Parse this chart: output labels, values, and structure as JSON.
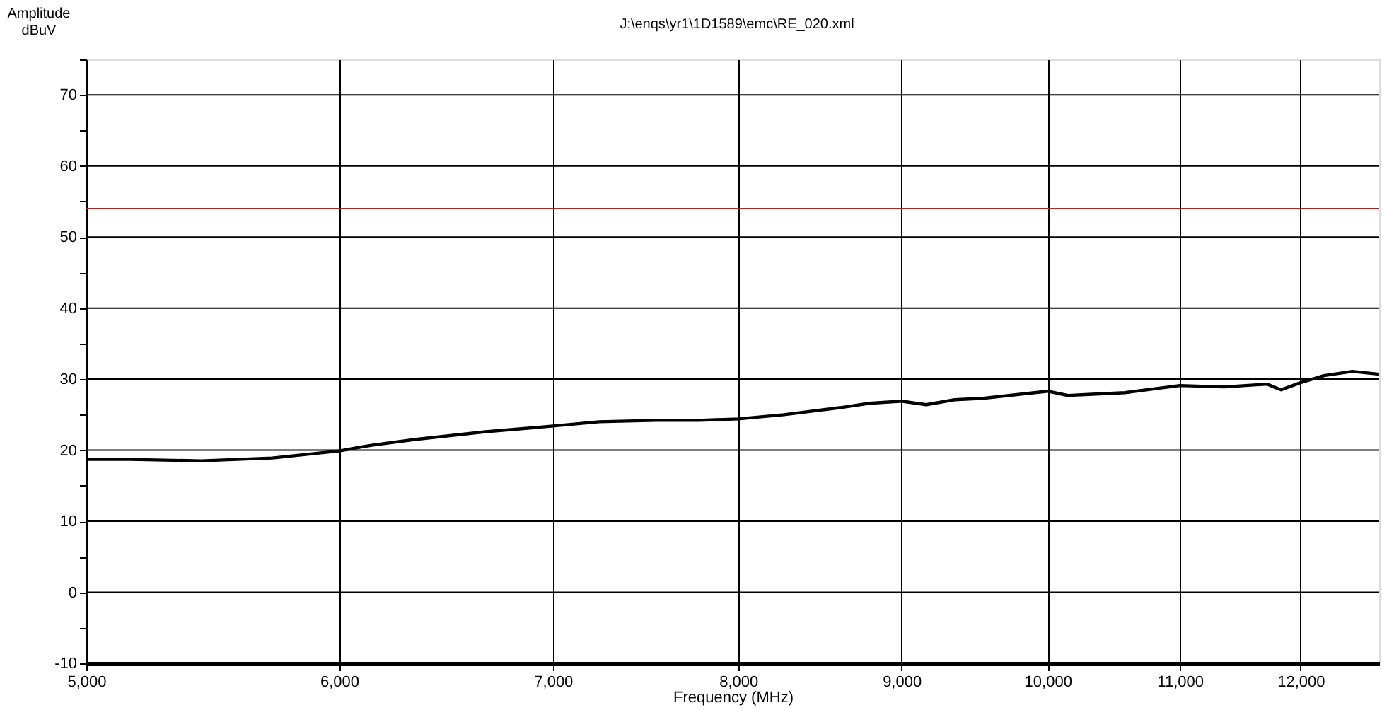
{
  "chart_data": {
    "type": "line",
    "title": "J:\\enqs\\yr1\\1D1589\\emc\\RE_020.xml",
    "xlabel": "Frequency (MHz)",
    "ylabel": "Amplitude\ndBuV",
    "log": "x",
    "grid": true,
    "legend": false,
    "marker": "none",
    "line_style": "solid",
    "xlim": [
      5000,
      12700
    ],
    "ylim": [
      -10,
      75
    ],
    "xticks": [
      {
        "value": 5000,
        "label": "5,000"
      },
      {
        "value": 6000,
        "label": "6,000"
      },
      {
        "value": 7000,
        "label": "7,000"
      },
      {
        "value": 8000,
        "label": "8,000"
      },
      {
        "value": 9000,
        "label": "9,000"
      },
      {
        "value": 10000,
        "label": "10,000"
      },
      {
        "value": 11000,
        "label": "11,000"
      },
      {
        "value": 12000,
        "label": "12,000"
      }
    ],
    "yticks": [
      -10,
      {
        "value": -5,
        "label": null
      },
      0,
      {
        "value": 5,
        "label": null
      },
      10,
      {
        "value": 15,
        "label": null
      },
      20,
      {
        "value": 25,
        "label": null
      },
      30,
      {
        "value": 35,
        "label": null
      },
      40,
      {
        "value": 45,
        "label": null
      },
      50,
      {
        "value": 55,
        "label": null
      },
      60,
      {
        "value": 65,
        "label": null
      },
      70,
      {
        "value": 75,
        "label": null
      }
    ],
    "ref_lines": [
      {
        "axis": "y",
        "value": 54,
        "color": "#ff0000"
      }
    ],
    "series": [
      {
        "color": "#000000",
        "x": [
          5000,
          5162,
          5432,
          5718,
          6000,
          6142,
          6335,
          6668,
          7000,
          7237,
          7539,
          7774,
          8000,
          8269,
          8615,
          8793,
          9000,
          9161,
          9351,
          9544,
          10000,
          10147,
          10571,
          11000,
          11357,
          11714,
          11833,
          12000,
          12204,
          12457,
          12700
        ],
        "values": [
          18.7,
          18.7,
          18.5,
          18.9,
          19.9,
          20.7,
          21.5,
          22.6,
          23.4,
          24.0,
          24.2,
          24.2,
          24.4,
          25.0,
          26.0,
          26.6,
          26.9,
          26.4,
          27.1,
          27.3,
          28.3,
          27.7,
          28.1,
          29.1,
          28.9,
          29.3,
          28.5,
          29.5,
          30.5,
          31.1,
          30.7
        ]
      }
    ]
  }
}
